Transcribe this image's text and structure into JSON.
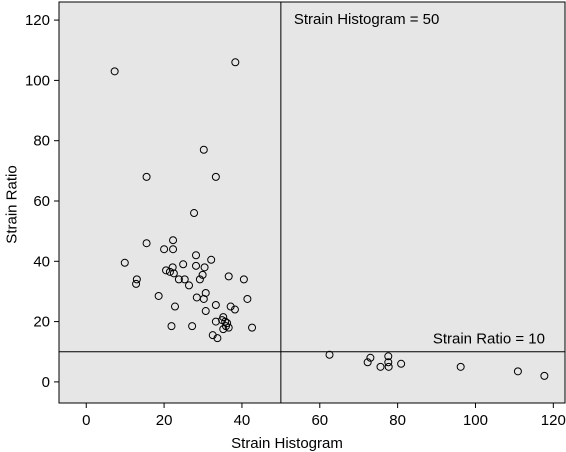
{
  "chart_data": {
    "type": "scatter",
    "xlabel": "Strain Histogram",
    "ylabel": "Strain Ratio",
    "xlim": [
      -7,
      123
    ],
    "ylim": [
      -7,
      126
    ],
    "xticks": [
      0,
      20,
      40,
      60,
      80,
      100,
      120
    ],
    "yticks": [
      0,
      20,
      40,
      60,
      80,
      100,
      120
    ],
    "grid": false,
    "plot_background": "#e6e6e6",
    "reference_lines": [
      {
        "orientation": "vertical",
        "value": 50,
        "label": "Strain Histogram = 50"
      },
      {
        "orientation": "horizontal",
        "value": 10,
        "label": "Strain Ratio = 10"
      }
    ],
    "points": [
      {
        "x": 7.3,
        "y": 103
      },
      {
        "x": 38.3,
        "y": 106
      },
      {
        "x": 30.2,
        "y": 77
      },
      {
        "x": 15.5,
        "y": 68
      },
      {
        "x": 33.3,
        "y": 68
      },
      {
        "x": 27.7,
        "y": 56
      },
      {
        "x": 15.5,
        "y": 46
      },
      {
        "x": 22.3,
        "y": 47
      },
      {
        "x": 20.0,
        "y": 44
      },
      {
        "x": 22.3,
        "y": 44
      },
      {
        "x": 28.2,
        "y": 42
      },
      {
        "x": 32.1,
        "y": 40.5
      },
      {
        "x": 9.9,
        "y": 39.5
      },
      {
        "x": 24.9,
        "y": 39
      },
      {
        "x": 28.2,
        "y": 38.5
      },
      {
        "x": 30.4,
        "y": 38
      },
      {
        "x": 22.2,
        "y": 38
      },
      {
        "x": 20.5,
        "y": 37
      },
      {
        "x": 21.5,
        "y": 36.5
      },
      {
        "x": 22.5,
        "y": 36
      },
      {
        "x": 29.9,
        "y": 35.5
      },
      {
        "x": 36.6,
        "y": 35
      },
      {
        "x": 29.2,
        "y": 34
      },
      {
        "x": 23.8,
        "y": 34
      },
      {
        "x": 25.3,
        "y": 34
      },
      {
        "x": 13.0,
        "y": 34
      },
      {
        "x": 40.5,
        "y": 34
      },
      {
        "x": 26.4,
        "y": 32
      },
      {
        "x": 12.8,
        "y": 32.5
      },
      {
        "x": 30.7,
        "y": 29.5
      },
      {
        "x": 18.6,
        "y": 28.5
      },
      {
        "x": 28.4,
        "y": 28
      },
      {
        "x": 30.2,
        "y": 27.5
      },
      {
        "x": 41.4,
        "y": 27.5
      },
      {
        "x": 33.3,
        "y": 25.5
      },
      {
        "x": 22.8,
        "y": 25
      },
      {
        "x": 37.1,
        "y": 25
      },
      {
        "x": 38.2,
        "y": 24
      },
      {
        "x": 30.7,
        "y": 23.5
      },
      {
        "x": 35.2,
        "y": 21.5
      },
      {
        "x": 34.9,
        "y": 20.5
      },
      {
        "x": 33.3,
        "y": 20
      },
      {
        "x": 35.7,
        "y": 20
      },
      {
        "x": 36.2,
        "y": 19.5
      },
      {
        "x": 35.9,
        "y": 18.5
      },
      {
        "x": 21.9,
        "y": 18.5
      },
      {
        "x": 27.2,
        "y": 18.5
      },
      {
        "x": 36.6,
        "y": 18
      },
      {
        "x": 35.2,
        "y": 17.5
      },
      {
        "x": 42.6,
        "y": 18
      },
      {
        "x": 32.5,
        "y": 15.5
      },
      {
        "x": 33.7,
        "y": 14.5
      },
      {
        "x": 62.5,
        "y": 9
      },
      {
        "x": 73.0,
        "y": 8
      },
      {
        "x": 77.6,
        "y": 8.5
      },
      {
        "x": 72.3,
        "y": 6.5
      },
      {
        "x": 77.6,
        "y": 6.5
      },
      {
        "x": 80.9,
        "y": 6
      },
      {
        "x": 75.6,
        "y": 5
      },
      {
        "x": 77.7,
        "y": 5
      },
      {
        "x": 96.2,
        "y": 5
      },
      {
        "x": 110.9,
        "y": 3.5
      },
      {
        "x": 117.7,
        "y": 2
      }
    ]
  }
}
